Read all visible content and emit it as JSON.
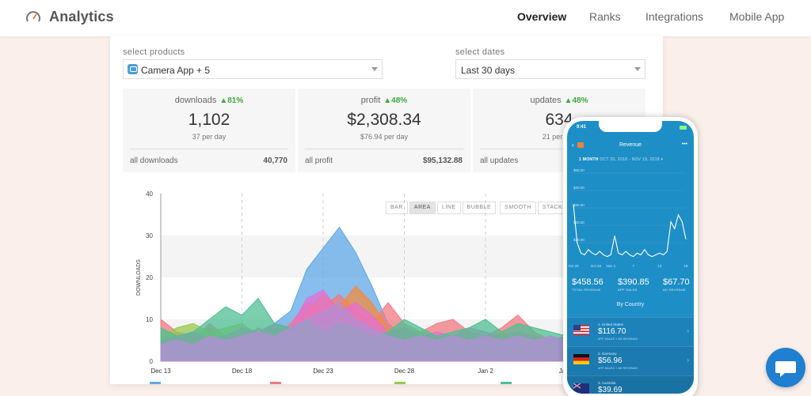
{
  "app": {
    "title": "Analytics"
  },
  "nav": [
    "Overview",
    "Ranks",
    "Integrations",
    "Mobile App"
  ],
  "filters": {
    "products_label": "select products",
    "products_value": "Camera App + 5",
    "dates_label": "select dates",
    "dates_value": "Last 30 days"
  },
  "stats": [
    {
      "title": "downloads",
      "change": "81%",
      "value": "1,102",
      "per": "37 per day",
      "foot_label": "all downloads",
      "foot_value": "40,770"
    },
    {
      "title": "profit",
      "change": "48%",
      "value": "$2,308.34",
      "per": "$76.94 per day",
      "foot_label": "all profit",
      "foot_value": "$95,132.88"
    },
    {
      "title": "updates",
      "change": "48%",
      "value": "634",
      "per": "21 per day",
      "foot_label": "all updates",
      "foot_value": ""
    }
  ],
  "chart_modes": [
    "BAR",
    "AREA",
    "LINE",
    "BUBBLE",
    "SMOOTH",
    "STACKED"
  ],
  "colors": {
    "accent": "#1f7fd0",
    "positive": "#3daa3d",
    "phone_bg": "#1e8ec6"
  },
  "chart_data": {
    "type": "area",
    "ylabel": "DOWNLOADS",
    "ylim": [
      0,
      40
    ],
    "yticks": [
      "0",
      "10",
      "20",
      "30",
      "40"
    ],
    "xtick_labels": [
      "Dec 13",
      "Dec 18",
      "Dec 23",
      "Dec 28",
      "Jan 2",
      "Jan 7"
    ],
    "x": [
      0,
      1,
      2,
      3,
      4,
      5,
      6,
      7,
      8,
      9,
      10,
      11,
      12,
      13,
      14,
      15,
      16,
      17,
      18,
      19,
      20,
      21,
      22,
      23,
      24,
      25,
      26
    ],
    "series": [
      {
        "color": "#5fa8e8",
        "values": [
          5,
          7,
          6,
          8,
          6,
          5,
          7,
          9,
          12,
          22,
          27,
          32,
          26,
          18,
          9,
          6,
          5,
          4,
          5,
          6,
          5,
          6,
          4,
          5,
          6,
          5,
          6
        ]
      },
      {
        "color": "#f07a82",
        "values": [
          10,
          7,
          5,
          9,
          6,
          5,
          8,
          6,
          9,
          14,
          13,
          16,
          12,
          9,
          14,
          9,
          7,
          9,
          10,
          7,
          6,
          8,
          11,
          7,
          5,
          6,
          8
        ]
      },
      {
        "color": "#f58a3c",
        "values": [
          4,
          6,
          5,
          7,
          5,
          6,
          5,
          6,
          8,
          12,
          16,
          13,
          18,
          14,
          8,
          7,
          5,
          6,
          5,
          6,
          5,
          7,
          5,
          6,
          5,
          4,
          5
        ]
      },
      {
        "color": "#9bc84e",
        "values": [
          6,
          8,
          9,
          7,
          8,
          9,
          6,
          8,
          7,
          9,
          8,
          10,
          8,
          7,
          6,
          8,
          7,
          5,
          6,
          7,
          5,
          6,
          7,
          5,
          6,
          5,
          6
        ]
      },
      {
        "color": "#e36fd6",
        "values": [
          5,
          6,
          7,
          5,
          6,
          8,
          7,
          9,
          8,
          15,
          17,
          12,
          14,
          11,
          7,
          8,
          6,
          7,
          6,
          8,
          7,
          6,
          7,
          6,
          5,
          6,
          5
        ]
      },
      {
        "color": "#4fbf93",
        "values": [
          8,
          6,
          7,
          10,
          13,
          11,
          15,
          9,
          8,
          10,
          7,
          9,
          8,
          6,
          7,
          10,
          8,
          6,
          7,
          8,
          10,
          7,
          9,
          8,
          7,
          6,
          7
        ]
      },
      {
        "color": "#b38fd4",
        "values": [
          4,
          5,
          4,
          6,
          5,
          6,
          7,
          6,
          8,
          10,
          12,
          14,
          10,
          8,
          6,
          5,
          6,
          5,
          6,
          5,
          6,
          5,
          6,
          5,
          6,
          5,
          5
        ]
      }
    ]
  },
  "phone": {
    "time": "9:41",
    "title": "Revenue",
    "range_label": "1 MONTH",
    "range_dates": "OCT 20, 2018 - NOV 19, 2018",
    "metrics": [
      {
        "value": "$458.56",
        "label": "TOTAL REVENUE"
      },
      {
        "value": "$390.85",
        "label": "APP SALES"
      },
      {
        "value": "$67.70",
        "label": "AD REVENUE"
      }
    ],
    "y_ticks": [
      "$50.00",
      "$40.00",
      "$30.00",
      "$20.00",
      "$10.00"
    ],
    "x_ticks": [
      "Oct 20",
      "Oct 29",
      "Nov 1",
      "7",
      "13",
      "19"
    ],
    "revenue": [
      32,
      10,
      4,
      3,
      6,
      4,
      3,
      5,
      3,
      2,
      3,
      14,
      4,
      3,
      5,
      3,
      2,
      4,
      3,
      6,
      3,
      2,
      3,
      4,
      3,
      5,
      22,
      18,
      26,
      22,
      12
    ],
    "section_title": "By Country",
    "countries": [
      {
        "name": "1. United States",
        "value": "$116.70",
        "sub": "APP SALES + AD REVENUE",
        "flag": "us"
      },
      {
        "name": "2. Germany",
        "value": "$56.96",
        "sub": "APP SALES + AD REVENUE",
        "flag": "de"
      },
      {
        "name": "3. Australia",
        "value": "$39.69",
        "sub": "",
        "flag": "au"
      }
    ]
  }
}
